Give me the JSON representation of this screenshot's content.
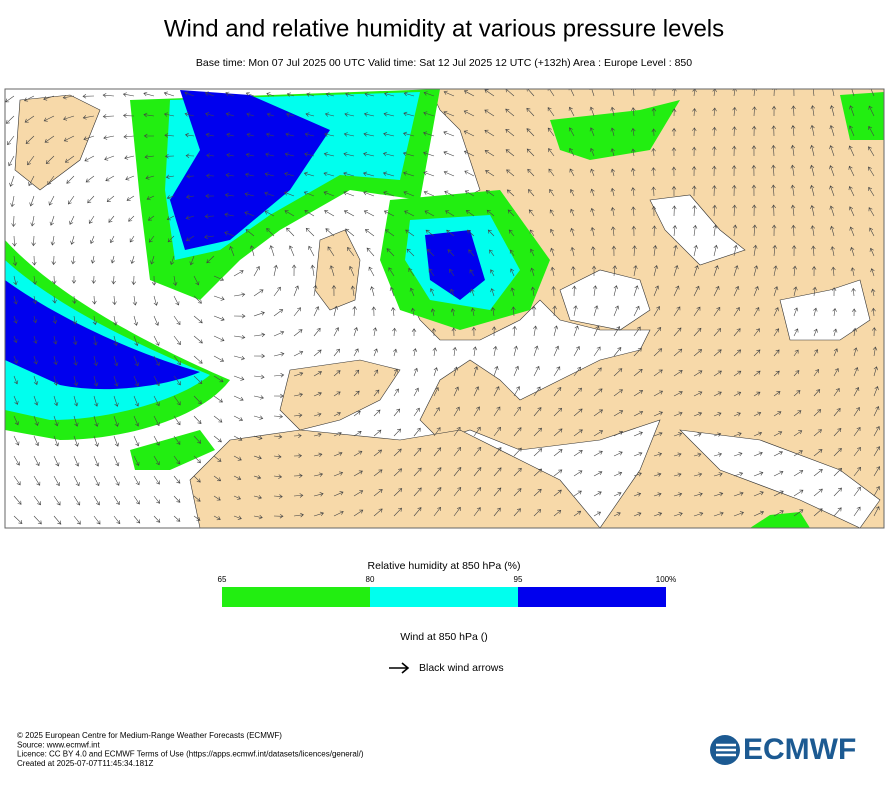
{
  "header": {
    "title": "Wind and relative humidity at various pressure levels",
    "subtitle": "Base time: Mon 07 Jul 2025 00 UTC Valid time: Sat 12 Jul 2025 12 UTC (+132h) Area : Europe Level : 850"
  },
  "colorbar": {
    "title": "Relative humidity at 850 hPa (%)",
    "ticks": [
      65,
      80,
      95,
      {
        "value": 100,
        "label": "100%"
      }
    ],
    "colors": [
      "#22ee11",
      "#00ffee",
      "#0000ee"
    ]
  },
  "wind_legend": {
    "title": "Wind at 850 hPa ()",
    "label": "Black wind arrows"
  },
  "footer": {
    "lines": [
      "© 2025 European Centre for Medium-Range Weather Forecasts (ECMWF)",
      "Source: www.ecmwf.int",
      "Licence: CC BY 4.0 and ECMWF Terms of Use (https://apps.ecmwf.int/datasets/licences/general/)",
      "Created at 2025-07-07T11:45:34.181Z"
    ]
  },
  "logo": "ECMWF"
}
